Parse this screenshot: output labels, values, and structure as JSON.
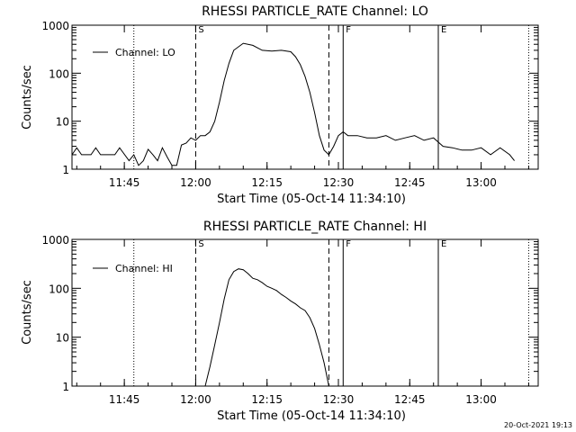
{
  "chart_data": [
    {
      "type": "line",
      "title": "RHESSI PARTICLE_RATE Channel: LO",
      "xlabel": "Start Time (05-Oct-14 11:34:10)",
      "ylabel": "Counts/sec",
      "yscale": "log",
      "ylim": [
        1,
        1000
      ],
      "xlim": [
        "11:34",
        "13:12"
      ],
      "x_ticks": [
        "11:45",
        "12:00",
        "12:15",
        "12:30",
        "12:45",
        "13:00"
      ],
      "y_ticks": [
        "1",
        "10",
        "100",
        "1000"
      ],
      "grid": false,
      "legend_position": "top-left",
      "series": [
        {
          "name": "Channel: LO",
          "x": [
            "11:34",
            "11:35",
            "11:36",
            "11:38",
            "11:39",
            "11:40",
            "11:42",
            "11:43",
            "11:44",
            "11:46",
            "11:47",
            "11:48",
            "11:49",
            "11:50",
            "11:51",
            "11:52",
            "11:53",
            "11:54",
            "11:55",
            "11:56",
            "11:57",
            "11:58",
            "11:59",
            "12:00",
            "12:01",
            "12:02",
            "12:03",
            "12:04",
            "12:05",
            "12:06",
            "12:07",
            "12:08",
            "12:10",
            "12:12",
            "12:14",
            "12:16",
            "12:18",
            "12:20",
            "12:21",
            "12:22",
            "12:23",
            "12:24",
            "12:25",
            "12:26",
            "12:27",
            "12:28",
            "12:29",
            "12:30",
            "12:31",
            "12:32",
            "12:34",
            "12:36",
            "12:38",
            "12:40",
            "12:42",
            "12:44",
            "12:46",
            "12:48",
            "12:50",
            "12:52",
            "12:54",
            "12:56",
            "12:58",
            "13:00",
            "13:02",
            "13:04",
            "13:06",
            "13:07"
          ],
          "y": [
            2,
            2.8,
            2,
            2,
            2.8,
            2,
            2,
            2,
            2.8,
            1.5,
            2,
            1.2,
            1.5,
            2.6,
            2,
            1.5,
            2.8,
            1.8,
            1.2,
            1.2,
            3.2,
            3.5,
            4.5,
            4,
            5,
            5,
            6,
            10,
            25,
            70,
            160,
            300,
            420,
            380,
            300,
            290,
            300,
            280,
            220,
            150,
            85,
            40,
            15,
            5,
            2.5,
            2,
            3,
            5,
            6,
            5,
            5,
            4.5,
            4.5,
            5,
            4,
            4.5,
            5,
            4,
            4.5,
            3,
            2.8,
            2.5,
            2.5,
            2.8,
            2,
            2.8,
            2,
            1.5
          ]
        }
      ],
      "annotations": [
        {
          "label": "S",
          "x": "12:00",
          "style": "dashed"
        },
        {
          "label": "F",
          "x": "12:31",
          "style": "solid"
        },
        {
          "label": "E",
          "x": "12:51",
          "style": "solid"
        }
      ]
    },
    {
      "type": "line",
      "title": "RHESSI PARTICLE_RATE Channel: HI",
      "xlabel": "Start Time (05-Oct-14 11:34:10)",
      "ylabel": "Counts/sec",
      "yscale": "log",
      "ylim": [
        1,
        1000
      ],
      "xlim": [
        "11:34",
        "13:12"
      ],
      "x_ticks": [
        "11:45",
        "12:00",
        "12:15",
        "12:30",
        "12:45",
        "13:00"
      ],
      "y_ticks": [
        "1",
        "10",
        "100",
        "1000"
      ],
      "grid": false,
      "legend_position": "top-left",
      "series": [
        {
          "name": "Channel: HI",
          "x": [
            "12:02",
            "12:03",
            "12:04",
            "12:05",
            "12:06",
            "12:07",
            "12:08",
            "12:09",
            "12:10",
            "12:11",
            "12:12",
            "12:13",
            "12:14",
            "12:15",
            "12:16",
            "12:17",
            "12:18",
            "12:19",
            "12:20",
            "12:21",
            "12:22",
            "12:23",
            "12:24",
            "12:25",
            "12:26",
            "12:27",
            "12:28"
          ],
          "y": [
            1,
            2.5,
            7,
            20,
            60,
            150,
            220,
            250,
            240,
            200,
            160,
            150,
            130,
            110,
            100,
            90,
            75,
            65,
            55,
            48,
            40,
            35,
            25,
            15,
            7,
            3,
            1
          ]
        }
      ],
      "annotations": [
        {
          "label": "S",
          "x": "12:00",
          "style": "dashed"
        },
        {
          "label": "F",
          "x": "12:31",
          "style": "solid"
        },
        {
          "label": "E",
          "x": "12:51",
          "style": "solid"
        }
      ]
    }
  ],
  "footer": {
    "timestamp": "20-Oct-2021 19:13"
  }
}
